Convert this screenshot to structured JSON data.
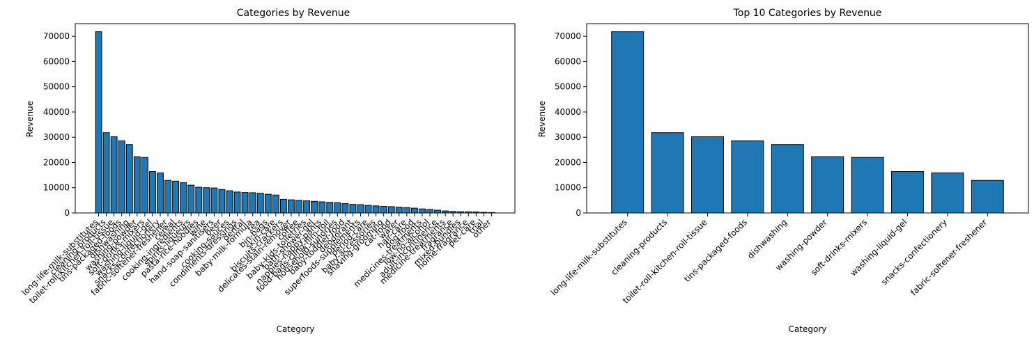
{
  "chart_data": [
    {
      "type": "bar",
      "title": "Categories by Revenue",
      "xlabel": "Category",
      "ylabel": "Revenue",
      "ylim": [
        0,
        75000
      ],
      "yticks": [
        0,
        10000,
        20000,
        30000,
        40000,
        50000,
        60000,
        70000
      ],
      "bar_color": "#1f77b4",
      "edge_color": "#000000",
      "categories": [
        "long-life-milk-substitutes",
        "cleaning-products",
        "toilet-roll-kitchen-roll-tissue",
        "tins-packaged-foods",
        "dishwashing",
        "washing-powder",
        "soft-drinks-mixers",
        "washing-liquid-gel",
        "snacks-confectionery",
        "fabric-softener-freshener",
        "cereal",
        "cooking-ingredients",
        "spirits-liqueurs",
        "pasta-rice-noodles",
        "wine",
        "hand-soap-sanitisers",
        "beer",
        "cooking-sauces",
        "condiments-dressings",
        "dental",
        "baby-milk-formula",
        "tea",
        "bin-bags",
        "skin-care",
        "biscuits-crackers",
        "delicates-stain-remover",
        "coffee",
        "baby-kids-toiletries",
        "bath-shower-gel",
        "nappies-nappy-pants",
        "food-bags-cling-film-foil",
        "household-sundries",
        "baby-toddler-food",
        "deodorant",
        "superfoods-supplements",
        "period-care",
        "baby-accessories",
        "shaving-grooming",
        "cat-food",
        "water",
        "hair-care",
        "dog-food",
        "medicines-treatments",
        "low-no-alcohol",
        "adult-incontinence",
        "medicine-treatments",
        "fragrance",
        "mixed-bundles",
        "home-fragrance",
        "pet-care",
        "trial",
        "other"
      ],
      "values": [
        71800,
        31800,
        30200,
        28600,
        27100,
        22300,
        22000,
        16400,
        15900,
        12900,
        12600,
        12000,
        11000,
        10200,
        10000,
        9900,
        9300,
        8800,
        8300,
        8100,
        8000,
        7800,
        7400,
        7100,
        5400,
        5200,
        5000,
        4800,
        4600,
        4400,
        4200,
        4100,
        3700,
        3400,
        3300,
        3000,
        2800,
        2600,
        2500,
        2300,
        2100,
        1900,
        1600,
        1400,
        1100,
        800,
        600,
        500,
        450,
        400,
        250,
        180
      ],
      "visible_labels": [
        "long-life-milk-substitutes",
        "cleaning-products",
        "toilet-roll-kitchen-roll-tissue",
        "tins-packaged-foods",
        "dishwashing",
        "washing-powder",
        "soft-drinks-mixers",
        "washing-liquid-gel",
        "snacks-confectionery",
        "fabric-softener-freshener",
        "cereal",
        "cooking-ingredients",
        "spirits-liqueurs",
        "pasta-rice-noodles",
        "wine",
        "hand-soap-sanitisers",
        "beer",
        "cooking-sauces",
        "condiments-dressings",
        "dental",
        "baby-milk-formula",
        "tea",
        "bin-bags",
        "skin-care",
        "biscuits-crackers",
        "delicates-stain-remover",
        "coffee",
        "baby-kids-toiletries",
        "bath-shower-gel",
        "nappies-nappy-pants",
        "food-bags-cling-film-foil",
        "household-sundries",
        "baby-toddler-food",
        "deodorant",
        "superfoods-supplements",
        "period-care",
        "baby-accessories",
        "shaving-grooming",
        "cat-food",
        "water",
        "hair-care",
        "dog-food",
        "medicines-treatments",
        "low-no-alcohol",
        "adult-incontinence",
        "medicine-treatments",
        "fragrance",
        "mixed-bundles",
        "home-fragrance",
        "pet-care",
        "trial",
        "other"
      ]
    },
    {
      "type": "bar",
      "title": "Top 10 Categories by Revenue",
      "xlabel": "Category",
      "ylabel": "Revenue",
      "ylim": [
        0,
        75000
      ],
      "yticks": [
        0,
        10000,
        20000,
        30000,
        40000,
        50000,
        60000,
        70000
      ],
      "bar_color": "#1f77b4",
      "edge_color": "#000000",
      "categories": [
        "long-life-milk-substitutes",
        "cleaning-products",
        "toilet-roll-kitchen-roll-tissue",
        "tins-packaged-foods",
        "dishwashing",
        "washing-powder",
        "soft-drinks-mixers",
        "washing-liquid-gel",
        "snacks-confectionery",
        "fabric-softener-freshener"
      ],
      "values": [
        71800,
        31800,
        30200,
        28600,
        27100,
        22300,
        22000,
        16400,
        15900,
        12900
      ]
    }
  ]
}
